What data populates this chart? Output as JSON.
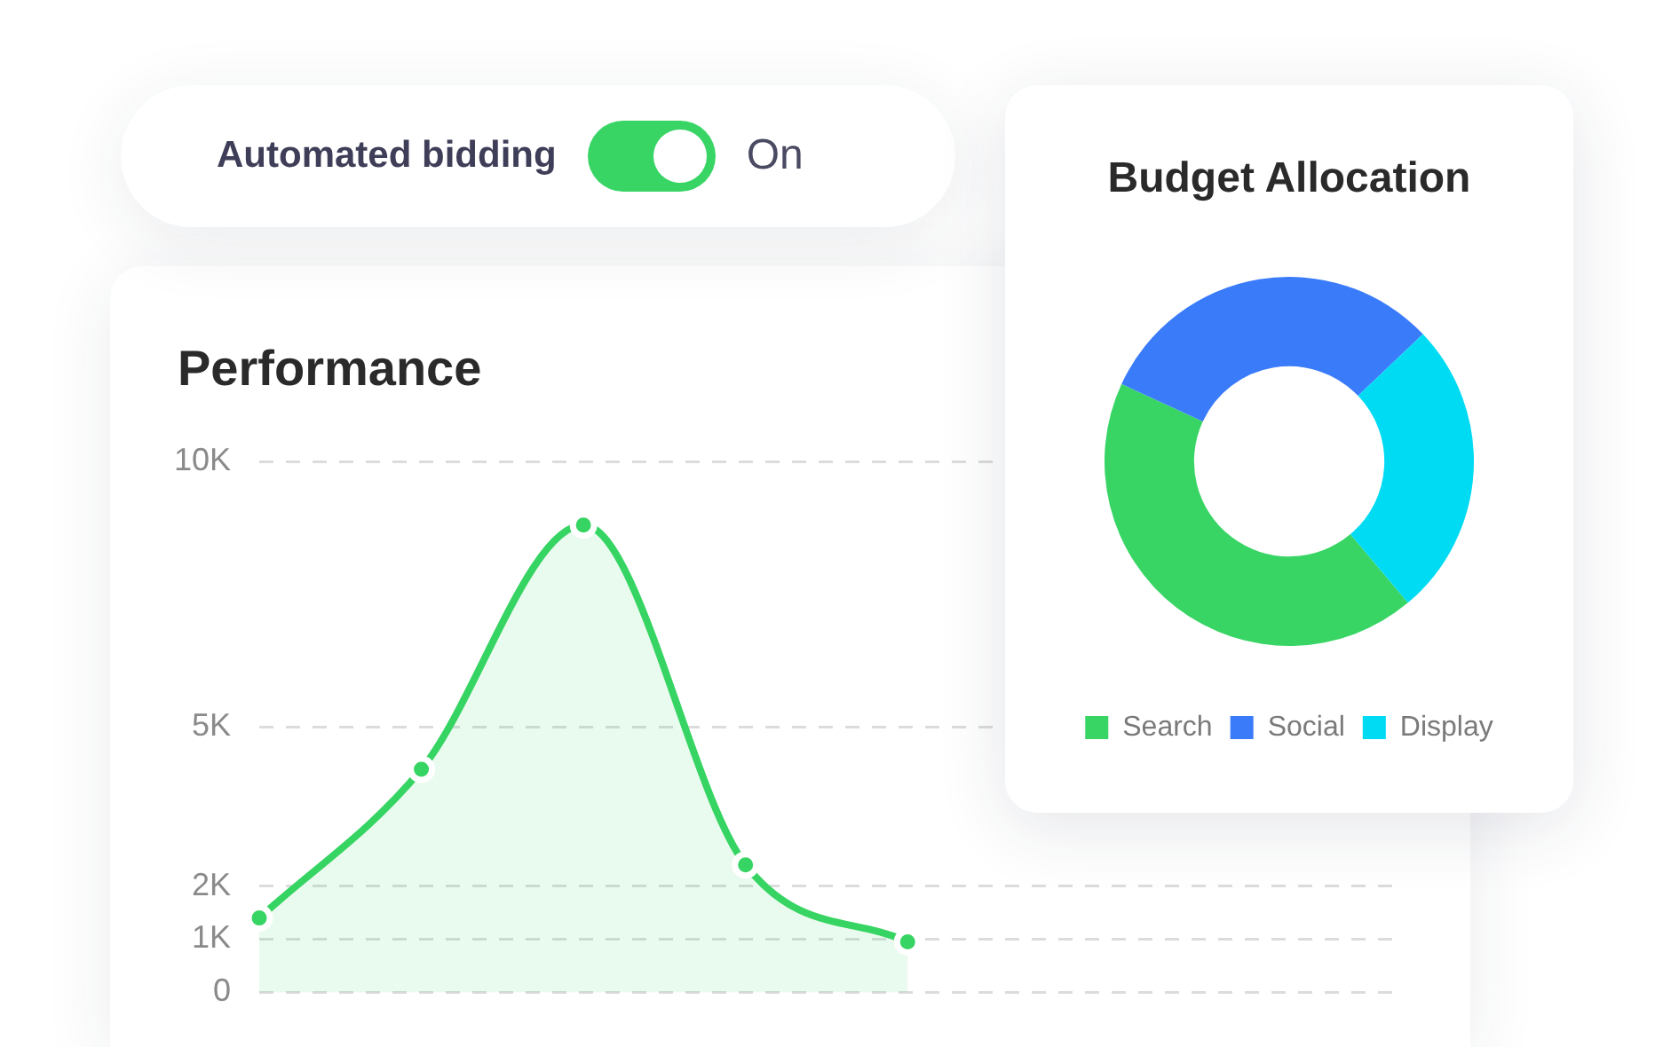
{
  "chart_data": [
    {
      "type": "other",
      "annotations": [
        "Automated bidding",
        "On"
      ]
    },
    {
      "type": "area",
      "title": "Performance",
      "categories": [
        null,
        null,
        null,
        null,
        null,
        null,
        null,
        null
      ],
      "values": [
        1400,
        4200,
        8800,
        2400,
        950,
        null,
        null,
        null
      ],
      "color": "#36d462",
      "ylim": [
        0,
        10000
      ],
      "yticks": [
        0,
        {
          "value": 1000,
          "label": "1K"
        },
        {
          "value": 2000,
          "label": "2K"
        },
        {
          "value": 5000,
          "label": "5K"
        },
        {
          "value": 10000,
          "label": "10K"
        }
      ],
      "grid": "y",
      "marker": "circle",
      "tick_labels": "y"
    },
    {
      "type": "donut",
      "title": "Budget Allocation",
      "categories": [
        "Search",
        "Social",
        "Display"
      ],
      "values": [
        43,
        31,
        26
      ],
      "colors": [
        "#38d565",
        "#3a7bfa",
        "#00dbf4"
      ],
      "legend": "bottom"
    }
  ]
}
